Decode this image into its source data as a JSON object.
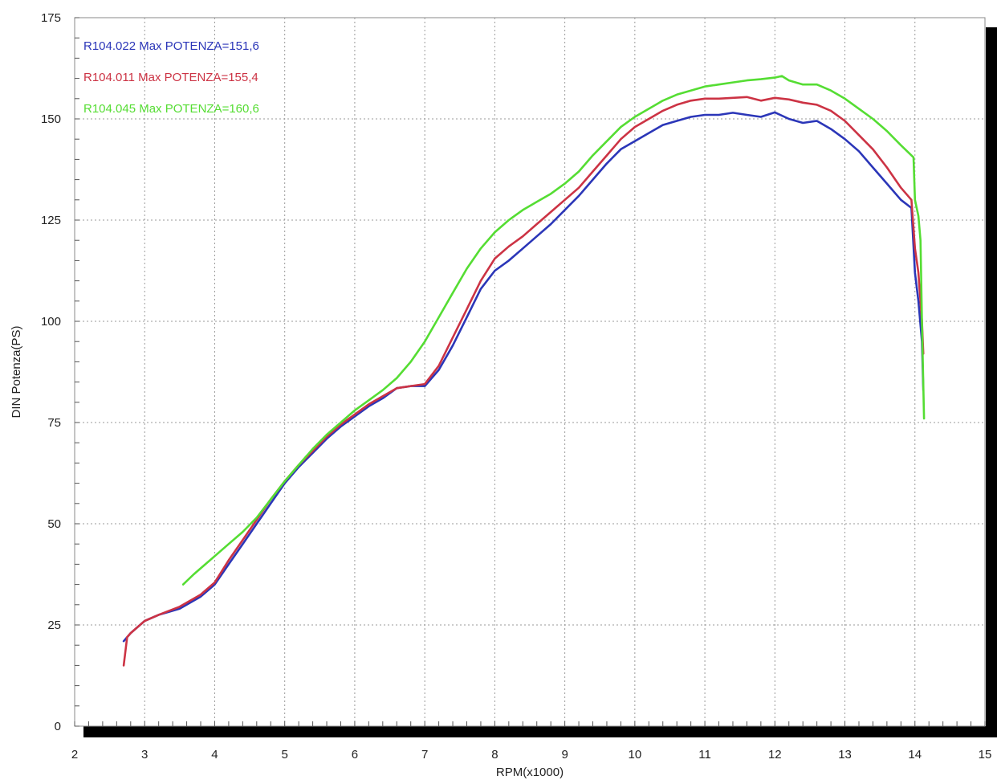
{
  "chart_data": {
    "type": "line",
    "xlabel": "RPM(x1000)",
    "ylabel": "DIN Potenza(PS)",
    "xlim": [
      2,
      15
    ],
    "ylim": [
      0,
      175
    ],
    "xticks": [
      "2",
      "3",
      "4",
      "5",
      "6",
      "7",
      "8",
      "9",
      "10",
      "11",
      "12",
      "13",
      "14",
      "15"
    ],
    "yticks": [
      "0",
      "25",
      "50",
      "75",
      "100",
      "125",
      "150",
      "175"
    ],
    "grid": true,
    "legend_position": "top-left",
    "series": [
      {
        "name": "R104.022  Max POTENZA=151,6",
        "color": "#2b36b8",
        "points": [
          [
            2.7,
            21
          ],
          [
            2.8,
            23
          ],
          [
            3.0,
            26
          ],
          [
            3.2,
            27.5
          ],
          [
            3.5,
            29
          ],
          [
            3.8,
            32
          ],
          [
            4.0,
            35
          ],
          [
            4.2,
            40
          ],
          [
            4.4,
            45
          ],
          [
            4.6,
            50
          ],
          [
            4.8,
            55
          ],
          [
            5.0,
            60
          ],
          [
            5.2,
            64
          ],
          [
            5.4,
            67.5
          ],
          [
            5.6,
            71
          ],
          [
            5.8,
            74
          ],
          [
            6.0,
            76.5
          ],
          [
            6.2,
            79
          ],
          [
            6.4,
            81
          ],
          [
            6.6,
            83.5
          ],
          [
            6.8,
            84
          ],
          [
            7.0,
            84
          ],
          [
            7.2,
            88
          ],
          [
            7.4,
            94
          ],
          [
            7.6,
            101
          ],
          [
            7.8,
            108
          ],
          [
            8.0,
            112.5
          ],
          [
            8.2,
            115
          ],
          [
            8.4,
            118
          ],
          [
            8.6,
            121
          ],
          [
            8.8,
            124
          ],
          [
            9.0,
            127.5
          ],
          [
            9.2,
            131
          ],
          [
            9.4,
            135
          ],
          [
            9.6,
            139
          ],
          [
            9.8,
            142.5
          ],
          [
            10.0,
            144.5
          ],
          [
            10.2,
            146.5
          ],
          [
            10.4,
            148.5
          ],
          [
            10.6,
            149.5
          ],
          [
            10.8,
            150.5
          ],
          [
            11.0,
            151
          ],
          [
            11.2,
            151
          ],
          [
            11.4,
            151.5
          ],
          [
            11.6,
            151
          ],
          [
            11.8,
            150.5
          ],
          [
            12.0,
            151.6
          ],
          [
            12.2,
            150
          ],
          [
            12.4,
            149
          ],
          [
            12.6,
            149.5
          ],
          [
            12.8,
            147.5
          ],
          [
            13.0,
            145
          ],
          [
            13.2,
            142
          ],
          [
            13.4,
            138
          ],
          [
            13.6,
            134
          ],
          [
            13.8,
            130
          ],
          [
            13.95,
            128
          ],
          [
            14.0,
            112
          ],
          [
            14.05,
            105
          ],
          [
            14.1,
            95
          ],
          [
            14.12,
            83
          ]
        ]
      },
      {
        "name": "R104.011  Max POTENZA=155,4",
        "color": "#cc3344",
        "points": [
          [
            2.7,
            15
          ],
          [
            2.75,
            22
          ],
          [
            2.8,
            23
          ],
          [
            3.0,
            26
          ],
          [
            3.2,
            27.5
          ],
          [
            3.5,
            29.5
          ],
          [
            3.8,
            32.5
          ],
          [
            4.0,
            35.5
          ],
          [
            4.2,
            41
          ],
          [
            4.4,
            46
          ],
          [
            4.6,
            51
          ],
          [
            4.8,
            56
          ],
          [
            5.0,
            60.5
          ],
          [
            5.2,
            64.5
          ],
          [
            5.4,
            68
          ],
          [
            5.6,
            71.5
          ],
          [
            5.8,
            74.5
          ],
          [
            6.0,
            77
          ],
          [
            6.2,
            79.5
          ],
          [
            6.4,
            81.5
          ],
          [
            6.6,
            83.5
          ],
          [
            6.8,
            84
          ],
          [
            7.0,
            84.5
          ],
          [
            7.2,
            89
          ],
          [
            7.4,
            96
          ],
          [
            7.6,
            103
          ],
          [
            7.8,
            110
          ],
          [
            8.0,
            115.5
          ],
          [
            8.2,
            118.5
          ],
          [
            8.4,
            121
          ],
          [
            8.6,
            124
          ],
          [
            8.8,
            127
          ],
          [
            9.0,
            130
          ],
          [
            9.2,
            133
          ],
          [
            9.4,
            137
          ],
          [
            9.6,
            141
          ],
          [
            9.8,
            145
          ],
          [
            10.0,
            148
          ],
          [
            10.2,
            150
          ],
          [
            10.4,
            152
          ],
          [
            10.6,
            153.5
          ],
          [
            10.8,
            154.5
          ],
          [
            11.0,
            155
          ],
          [
            11.2,
            155
          ],
          [
            11.4,
            155.2
          ],
          [
            11.6,
            155.4
          ],
          [
            11.8,
            154.5
          ],
          [
            12.0,
            155.2
          ],
          [
            12.2,
            154.8
          ],
          [
            12.4,
            154
          ],
          [
            12.6,
            153.5
          ],
          [
            12.8,
            152
          ],
          [
            13.0,
            149.5
          ],
          [
            13.2,
            146
          ],
          [
            13.4,
            142.5
          ],
          [
            13.6,
            138
          ],
          [
            13.8,
            133
          ],
          [
            13.95,
            130
          ],
          [
            14.0,
            118
          ],
          [
            14.05,
            112
          ],
          [
            14.1,
            100
          ],
          [
            14.12,
            92
          ]
        ]
      },
      {
        "name": "R104.045  Max POTENZA=160,6",
        "color": "#55dd33",
        "points": [
          [
            3.55,
            35
          ],
          [
            3.7,
            37.5
          ],
          [
            4.0,
            42
          ],
          [
            4.2,
            45
          ],
          [
            4.4,
            48
          ],
          [
            4.6,
            51.5
          ],
          [
            4.8,
            56
          ],
          [
            5.0,
            60.5
          ],
          [
            5.2,
            64.5
          ],
          [
            5.4,
            68.5
          ],
          [
            5.6,
            72
          ],
          [
            5.8,
            75
          ],
          [
            6.0,
            78
          ],
          [
            6.2,
            80.5
          ],
          [
            6.4,
            83
          ],
          [
            6.6,
            86
          ],
          [
            6.8,
            90
          ],
          [
            7.0,
            95
          ],
          [
            7.2,
            101
          ],
          [
            7.4,
            107
          ],
          [
            7.6,
            113
          ],
          [
            7.8,
            118
          ],
          [
            8.0,
            122
          ],
          [
            8.2,
            125
          ],
          [
            8.4,
            127.5
          ],
          [
            8.6,
            129.5
          ],
          [
            8.8,
            131.5
          ],
          [
            9.0,
            134
          ],
          [
            9.2,
            137
          ],
          [
            9.4,
            141
          ],
          [
            9.6,
            144.5
          ],
          [
            9.8,
            148
          ],
          [
            10.0,
            150.5
          ],
          [
            10.2,
            152.5
          ],
          [
            10.4,
            154.5
          ],
          [
            10.6,
            156
          ],
          [
            10.8,
            157
          ],
          [
            11.0,
            158
          ],
          [
            11.2,
            158.5
          ],
          [
            11.4,
            159
          ],
          [
            11.6,
            159.5
          ],
          [
            11.8,
            159.8
          ],
          [
            12.0,
            160.2
          ],
          [
            12.1,
            160.6
          ],
          [
            12.2,
            159.5
          ],
          [
            12.4,
            158.5
          ],
          [
            12.6,
            158.5
          ],
          [
            12.8,
            157
          ],
          [
            13.0,
            155
          ],
          [
            13.2,
            152.5
          ],
          [
            13.4,
            150
          ],
          [
            13.6,
            147
          ],
          [
            13.8,
            143.5
          ],
          [
            13.98,
            140.5
          ],
          [
            14.0,
            130
          ],
          [
            14.05,
            126
          ],
          [
            14.08,
            120
          ],
          [
            14.1,
            100
          ],
          [
            14.13,
            76
          ]
        ]
      }
    ]
  }
}
